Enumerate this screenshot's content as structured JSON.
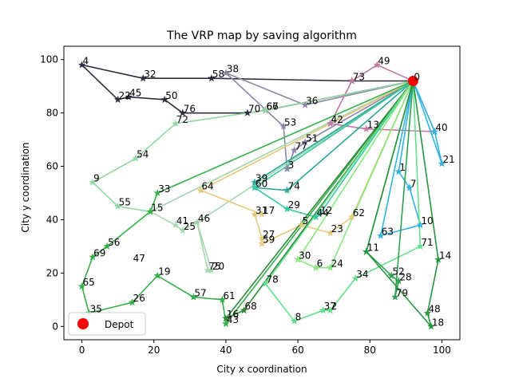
{
  "chart_data": {
    "type": "line",
    "title": "The VRP map by saving algorithm",
    "xlabel": "City x coordination",
    "ylabel": "City y coordination",
    "xlim": [
      -5,
      105
    ],
    "ylim": [
      -5,
      105
    ],
    "xticks": [
      0,
      20,
      40,
      60,
      80,
      100
    ],
    "yticks": [
      0,
      20,
      40,
      60,
      80,
      100
    ],
    "grid": false,
    "legend": {
      "placement": "bottom-left",
      "entries": [
        {
          "label": "Depot",
          "color": "#ff0000",
          "marker": "circle"
        }
      ]
    },
    "depot": {
      "label": "0",
      "x": 92,
      "y": 92
    },
    "cities": [
      {
        "label": "1",
        "x": 88,
        "y": 58
      },
      {
        "label": "2",
        "x": 69,
        "y": 6
      },
      {
        "label": "3",
        "x": 57,
        "y": 59
      },
      {
        "label": "4",
        "x": 0,
        "y": 98
      },
      {
        "label": "5",
        "x": 61,
        "y": 38
      },
      {
        "label": "6",
        "x": 65,
        "y": 22
      },
      {
        "label": "7",
        "x": 91,
        "y": 52
      },
      {
        "label": "8",
        "x": 59,
        "y": 2
      },
      {
        "label": "9",
        "x": 3,
        "y": 54
      },
      {
        "label": "10",
        "x": 94,
        "y": 38
      },
      {
        "label": "11",
        "x": 79,
        "y": 28
      },
      {
        "label": "12",
        "x": 66,
        "y": 42
      },
      {
        "label": "13",
        "x": 79,
        "y": 74
      },
      {
        "label": "14",
        "x": 99,
        "y": 25
      },
      {
        "label": "15",
        "x": 19,
        "y": 43
      },
      {
        "label": "16",
        "x": 40,
        "y": 3
      },
      {
        "label": "17",
        "x": 50,
        "y": 42
      },
      {
        "label": "18",
        "x": 97,
        "y": 0
      },
      {
        "label": "19",
        "x": 21,
        "y": 19
      },
      {
        "label": "20",
        "x": 36,
        "y": 21
      },
      {
        "label": "21",
        "x": 100,
        "y": 61
      },
      {
        "label": "22",
        "x": 10,
        "y": 85
      },
      {
        "label": "23",
        "x": 69,
        "y": 35
      },
      {
        "label": "24",
        "x": 69,
        "y": 22
      },
      {
        "label": "25",
        "x": 28,
        "y": 36
      },
      {
        "label": "26",
        "x": 14,
        "y": 9
      },
      {
        "label": "27",
        "x": 50,
        "y": 33
      },
      {
        "label": "28",
        "x": 88,
        "y": 17
      },
      {
        "label": "29",
        "x": 57,
        "y": 44
      },
      {
        "label": "30",
        "x": 60,
        "y": 25
      },
      {
        "label": "31",
        "x": 48,
        "y": 42
      },
      {
        "label": "32",
        "x": 17,
        "y": 93
      },
      {
        "label": "33",
        "x": 21,
        "y": 50
      },
      {
        "label": "34",
        "x": 76,
        "y": 18
      },
      {
        "label": "35",
        "x": 2,
        "y": 5
      },
      {
        "label": "36",
        "x": 62,
        "y": 83
      },
      {
        "label": "37",
        "x": 67,
        "y": 6
      },
      {
        "label": "38",
        "x": 40,
        "y": 95
      },
      {
        "label": "39",
        "x": 48,
        "y": 54
      },
      {
        "label": "40",
        "x": 98,
        "y": 73
      },
      {
        "label": "41",
        "x": 26,
        "y": 38
      },
      {
        "label": "42",
        "x": 69,
        "y": 76
      },
      {
        "label": "43",
        "x": 40,
        "y": 1
      },
      {
        "label": "44",
        "x": 65,
        "y": 41
      },
      {
        "label": "45",
        "x": 13,
        "y": 86
      },
      {
        "label": "46",
        "x": 32,
        "y": 39
      },
      {
        "label": "47",
        "x": 14,
        "y": 24
      },
      {
        "label": "48",
        "x": 96,
        "y": 5
      },
      {
        "label": "49",
        "x": 82,
        "y": 98
      },
      {
        "label": "50",
        "x": 23,
        "y": 85
      },
      {
        "label": "51",
        "x": 62,
        "y": 69
      },
      {
        "label": "52",
        "x": 86,
        "y": 19
      },
      {
        "label": "53",
        "x": 56,
        "y": 75
      },
      {
        "label": "54",
        "x": 15,
        "y": 63
      },
      {
        "label": "55",
        "x": 10,
        "y": 45
      },
      {
        "label": "56",
        "x": 7,
        "y": 30
      },
      {
        "label": "57",
        "x": 31,
        "y": 11
      },
      {
        "label": "58",
        "x": 36,
        "y": 93
      },
      {
        "label": "59",
        "x": 50,
        "y": 31
      },
      {
        "label": "60",
        "x": 48,
        "y": 52
      },
      {
        "label": "61",
        "x": 39,
        "y": 10
      },
      {
        "label": "62",
        "x": 75,
        "y": 41
      },
      {
        "label": "63",
        "x": 83,
        "y": 34
      },
      {
        "label": "64",
        "x": 33,
        "y": 51
      },
      {
        "label": "65",
        "x": 0,
        "y": 15
      },
      {
        "label": "66",
        "x": 51,
        "y": 81
      },
      {
        "label": "67",
        "x": 51,
        "y": 81
      },
      {
        "label": "68",
        "x": 45,
        "y": 6
      },
      {
        "label": "69",
        "x": 3,
        "y": 26
      },
      {
        "label": "70",
        "x": 46,
        "y": 80
      },
      {
        "label": "71",
        "x": 94,
        "y": 30
      },
      {
        "label": "72",
        "x": 26,
        "y": 76
      },
      {
        "label": "73",
        "x": 75,
        "y": 92
      },
      {
        "label": "74",
        "x": 57,
        "y": 51
      },
      {
        "label": "75",
        "x": 35,
        "y": 21
      },
      {
        "label": "76",
        "x": 28,
        "y": 80
      },
      {
        "label": "77",
        "x": 59,
        "y": 66
      },
      {
        "label": "78",
        "x": 51,
        "y": 16
      },
      {
        "label": "79",
        "x": 87,
        "y": 11
      }
    ],
    "series": [
      {
        "color": "#2d2d3f",
        "route": [
          0,
          73,
          58,
          32,
          4,
          22,
          45,
          50,
          76,
          70,
          66,
          0
        ]
      },
      {
        "color": "#8a86a8",
        "route": [
          0,
          36,
          38,
          53,
          3,
          77,
          51,
          0
        ]
      },
      {
        "color": "#c07aa3",
        "route": [
          0,
          49,
          73,
          42,
          0
        ]
      },
      {
        "color": "#c07aa3",
        "route": [
          0,
          40,
          13,
          42,
          0
        ]
      },
      {
        "color": "#33b3e0",
        "route": [
          0,
          21,
          40,
          0
        ]
      },
      {
        "color": "#33b3e0",
        "route": [
          0,
          1,
          7,
          10,
          63,
          0
        ]
      },
      {
        "color": "#90d8a0",
        "route": [
          0,
          66,
          72,
          54,
          9,
          55,
          15,
          0
        ]
      },
      {
        "color": "#a6d8b0",
        "route": [
          0,
          15,
          41,
          25,
          46,
          75,
          20,
          46,
          0
        ]
      },
      {
        "color": "#e8c87a",
        "route": [
          0,
          64,
          17,
          31,
          27,
          59,
          5,
          23,
          62,
          0
        ]
      },
      {
        "color": "#2aa89a",
        "route": [
          0,
          39,
          60,
          74,
          0
        ]
      },
      {
        "color": "#36c9a0",
        "route": [
          0,
          60,
          29,
          44,
          12,
          0
        ]
      },
      {
        "color": "#34b048",
        "route": [
          0,
          33,
          15,
          56,
          69,
          65,
          35,
          26,
          19,
          57,
          61,
          43,
          0
        ]
      },
      {
        "color": "#2e8a3a",
        "route": [
          0,
          16,
          68,
          0
        ]
      },
      {
        "color": "#62e08a",
        "route": [
          0,
          78,
          8,
          37,
          2,
          34,
          71,
          0
        ]
      },
      {
        "color": "#86e87c",
        "route": [
          0,
          30,
          6,
          24,
          0
        ]
      },
      {
        "color": "#2ea050",
        "route": [
          0,
          11,
          52,
          28,
          79,
          0
        ]
      },
      {
        "color": "#27963f",
        "route": [
          0,
          14,
          48,
          18,
          11,
          0
        ]
      }
    ]
  }
}
